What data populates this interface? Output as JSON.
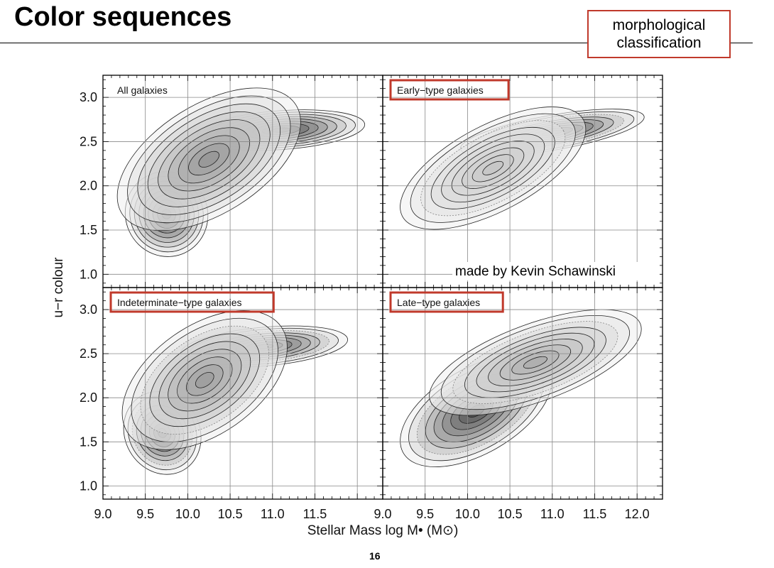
{
  "slide": {
    "title": "Color sequences",
    "callout": "morphological classification",
    "page_number": "16",
    "accent_color": "#c0392b"
  },
  "chart_data": {
    "type": "contour",
    "xlabel": "Stellar Mass log M• (M⊙)",
    "ylabel": "u−r colour",
    "xlim": [
      9.0,
      12.3
    ],
    "ylim": [
      0.85,
      3.25
    ],
    "y_ticks": [
      "1.0",
      "1.5",
      "2.0",
      "2.5",
      "3.0"
    ],
    "x_ticks_left": [
      "9.0",
      "9.5",
      "10.0",
      "10.5",
      "11.0",
      "11.5"
    ],
    "x_ticks_right": [
      "9.0",
      "9.5",
      "10.0",
      "10.5",
      "11.0",
      "11.5",
      "12.0"
    ],
    "grid": true,
    "annotation": "made by Kevin Schawinski",
    "panels": [
      {
        "title": "All galaxies",
        "highlighted": false,
        "sequences": [
          {
            "center": [
              9.75,
              1.68
            ],
            "spread": [
              0.22,
              0.22
            ],
            "angle_deg": 25,
            "peak": 1.0
          },
          {
            "center": [
              11.1,
              2.63
            ],
            "spread": [
              0.45,
              0.1
            ],
            "angle_deg": 4,
            "peak": 1.0
          },
          {
            "center": [
              10.25,
              2.3
            ],
            "spread": [
              0.55,
              0.28
            ],
            "angle_deg": 32,
            "peak": 0.55
          }
        ]
      },
      {
        "title": "Early−type galaxies",
        "highlighted": true,
        "sequences": [
          {
            "center": [
              11.0,
              2.6
            ],
            "spread": [
              0.5,
              0.09
            ],
            "angle_deg": 10,
            "peak": 1.0
          },
          {
            "center": [
              10.3,
              2.2
            ],
            "spread": [
              0.55,
              0.22
            ],
            "angle_deg": 28,
            "peak": 0.25
          }
        ]
      },
      {
        "title": "Indeterminate−type galaxies",
        "highlighted": true,
        "sequences": [
          {
            "center": [
              9.7,
              1.6
            ],
            "spread": [
              0.2,
              0.22
            ],
            "angle_deg": 30,
            "peak": 1.0
          },
          {
            "center": [
              10.9,
              2.58
            ],
            "spread": [
              0.45,
              0.1
            ],
            "angle_deg": 5,
            "peak": 0.9
          },
          {
            "center": [
              10.2,
              2.2
            ],
            "spread": [
              0.5,
              0.28
            ],
            "angle_deg": 35,
            "peak": 0.5
          }
        ]
      },
      {
        "title": "Late−type galaxies",
        "highlighted": true,
        "sequences": [
          {
            "center": [
              10.1,
              1.85
            ],
            "spread": [
              0.45,
              0.22
            ],
            "angle_deg": 30,
            "peak": 1.0
          },
          {
            "center": [
              10.8,
              2.4
            ],
            "spread": [
              0.6,
              0.2
            ],
            "angle_deg": 20,
            "peak": 0.4
          }
        ]
      }
    ]
  }
}
